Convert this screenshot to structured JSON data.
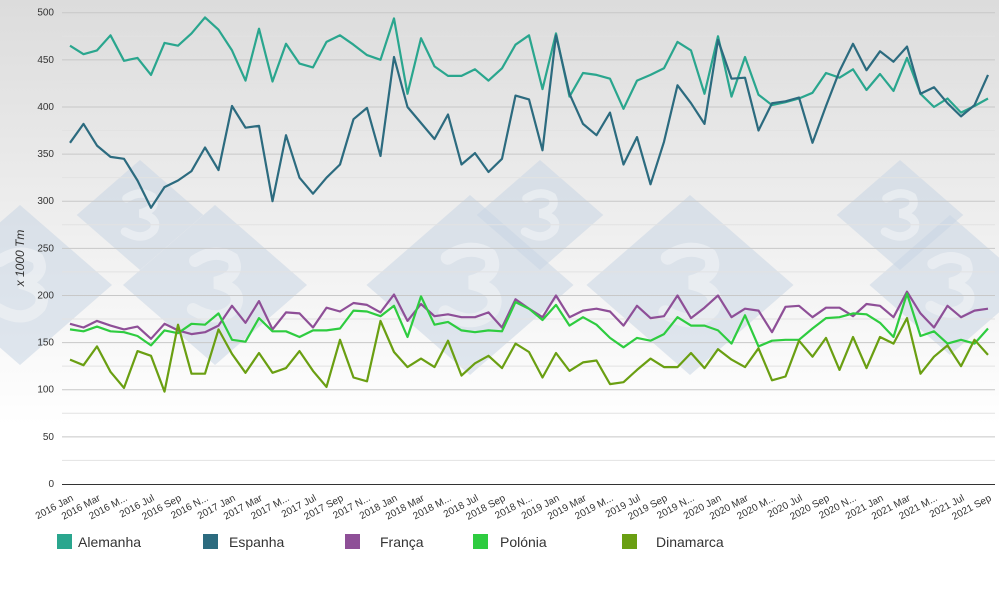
{
  "chart_data": {
    "type": "line",
    "title": "",
    "xlabel": "",
    "ylabel": "x 1000 Tm",
    "ylim": [
      0,
      500
    ],
    "yticks": [
      0,
      50,
      100,
      150,
      200,
      250,
      300,
      350,
      400,
      450,
      500
    ],
    "grid": true,
    "legend_position": "bottom-left",
    "tick_labels": [
      "2016 Jan",
      "2016 Mar",
      "2016 M...",
      "2016 Jul",
      "2016 Sep",
      "2016 N...",
      "2017 Jan",
      "2017 Mar",
      "2017 M...",
      "2017 Jul",
      "2017 Sep",
      "2017 N...",
      "2018 Jan",
      "2018 Mar",
      "2018 M...",
      "2018 Jul",
      "2018 Sep",
      "2018 N...",
      "2019 Jan",
      "2019 Mar",
      "2019 M...",
      "2019 Jul",
      "2019 Sep",
      "2019 N...",
      "2020 Jan",
      "2020 Mar",
      "2020 M...",
      "2020 Jul",
      "2020 Sep",
      "2020 N...",
      "2021 Jan",
      "2021 Mar",
      "2021 M...",
      "2021 Jul",
      "2021 Sep"
    ],
    "series": [
      {
        "name": "Alemanha",
        "color": "#2aa68e",
        "values": [
          465,
          456,
          460,
          476,
          449,
          452,
          434,
          468,
          465,
          478,
          495,
          482,
          460,
          428,
          483,
          427,
          467,
          446,
          442,
          469,
          476,
          466,
          455,
          450,
          494,
          414,
          473,
          443,
          433,
          433,
          440,
          428,
          441,
          466,
          476,
          419,
          478,
          411,
          436,
          434,
          430,
          398,
          428,
          434,
          441,
          469,
          460,
          414,
          475,
          411,
          453,
          413,
          402,
          405,
          409,
          415,
          436,
          431,
          440,
          418,
          435,
          417,
          452,
          414,
          400,
          409,
          394,
          401,
          409
        ]
      },
      {
        "name": "Espanha",
        "color": "#2c6b7f",
        "values": [
          362,
          382,
          359,
          347,
          345,
          322,
          293,
          315,
          322,
          332,
          357,
          333,
          401,
          378,
          380,
          300,
          370,
          325,
          308,
          325,
          339,
          387,
          399,
          348,
          453,
          400,
          383,
          366,
          392,
          339,
          351,
          331,
          345,
          412,
          408,
          354,
          476,
          414,
          382,
          370,
          394,
          339,
          368,
          318,
          363,
          423,
          404,
          382,
          471,
          430,
          431,
          375,
          404,
          406,
          410,
          362,
          401,
          438,
          467,
          439,
          459,
          448,
          464,
          414,
          421,
          404,
          390,
          402,
          434
        ]
      },
      {
        "name": "França",
        "color": "#8e4f97",
        "values": [
          170,
          166,
          173,
          168,
          164,
          167,
          154,
          170,
          163,
          159,
          161,
          168,
          189,
          171,
          194,
          164,
          182,
          181,
          166,
          187,
          183,
          192,
          190,
          182,
          201,
          173,
          191,
          178,
          180,
          177,
          177,
          182,
          166,
          196,
          186,
          177,
          200,
          177,
          184,
          186,
          183,
          168,
          189,
          176,
          178,
          200,
          176,
          187,
          200,
          177,
          186,
          184,
          161,
          188,
          189,
          177,
          187,
          187,
          178,
          191,
          189,
          177,
          204,
          181,
          166,
          189,
          177,
          184,
          186
        ]
      },
      {
        "name": "Polónia",
        "color": "#2ecc40",
        "values": [
          164,
          162,
          167,
          162,
          161,
          157,
          147,
          163,
          160,
          170,
          169,
          181,
          153,
          151,
          176,
          162,
          162,
          156,
          163,
          163,
          165,
          184,
          183,
          178,
          189,
          156,
          199,
          169,
          172,
          163,
          161,
          163,
          162,
          193,
          186,
          174,
          190,
          168,
          177,
          169,
          155,
          145,
          155,
          152,
          159,
          177,
          168,
          168,
          163,
          149,
          179,
          146,
          152,
          153,
          153,
          165,
          176,
          177,
          181,
          180,
          171,
          156,
          202,
          157,
          162,
          149,
          153,
          149,
          165
        ]
      },
      {
        "name": "Dinamarca",
        "color": "#6a9f12",
        "values": [
          132,
          126,
          146,
          119,
          102,
          141,
          136,
          98,
          169,
          117,
          117,
          164,
          138,
          118,
          139,
          118,
          123,
          141,
          120,
          103,
          153,
          113,
          109,
          173,
          140,
          124,
          133,
          124,
          152,
          115,
          128,
          136,
          123,
          149,
          140,
          113,
          139,
          120,
          129,
          131,
          106,
          108,
          121,
          133,
          124,
          124,
          139,
          123,
          143,
          132,
          124,
          144,
          110,
          114,
          152,
          135,
          155,
          121,
          156,
          123,
          156,
          149,
          176,
          117,
          135,
          147,
          125,
          153,
          137
        ]
      }
    ]
  },
  "watermark": {
    "text": "3",
    "color": "#c9d6e3"
  }
}
